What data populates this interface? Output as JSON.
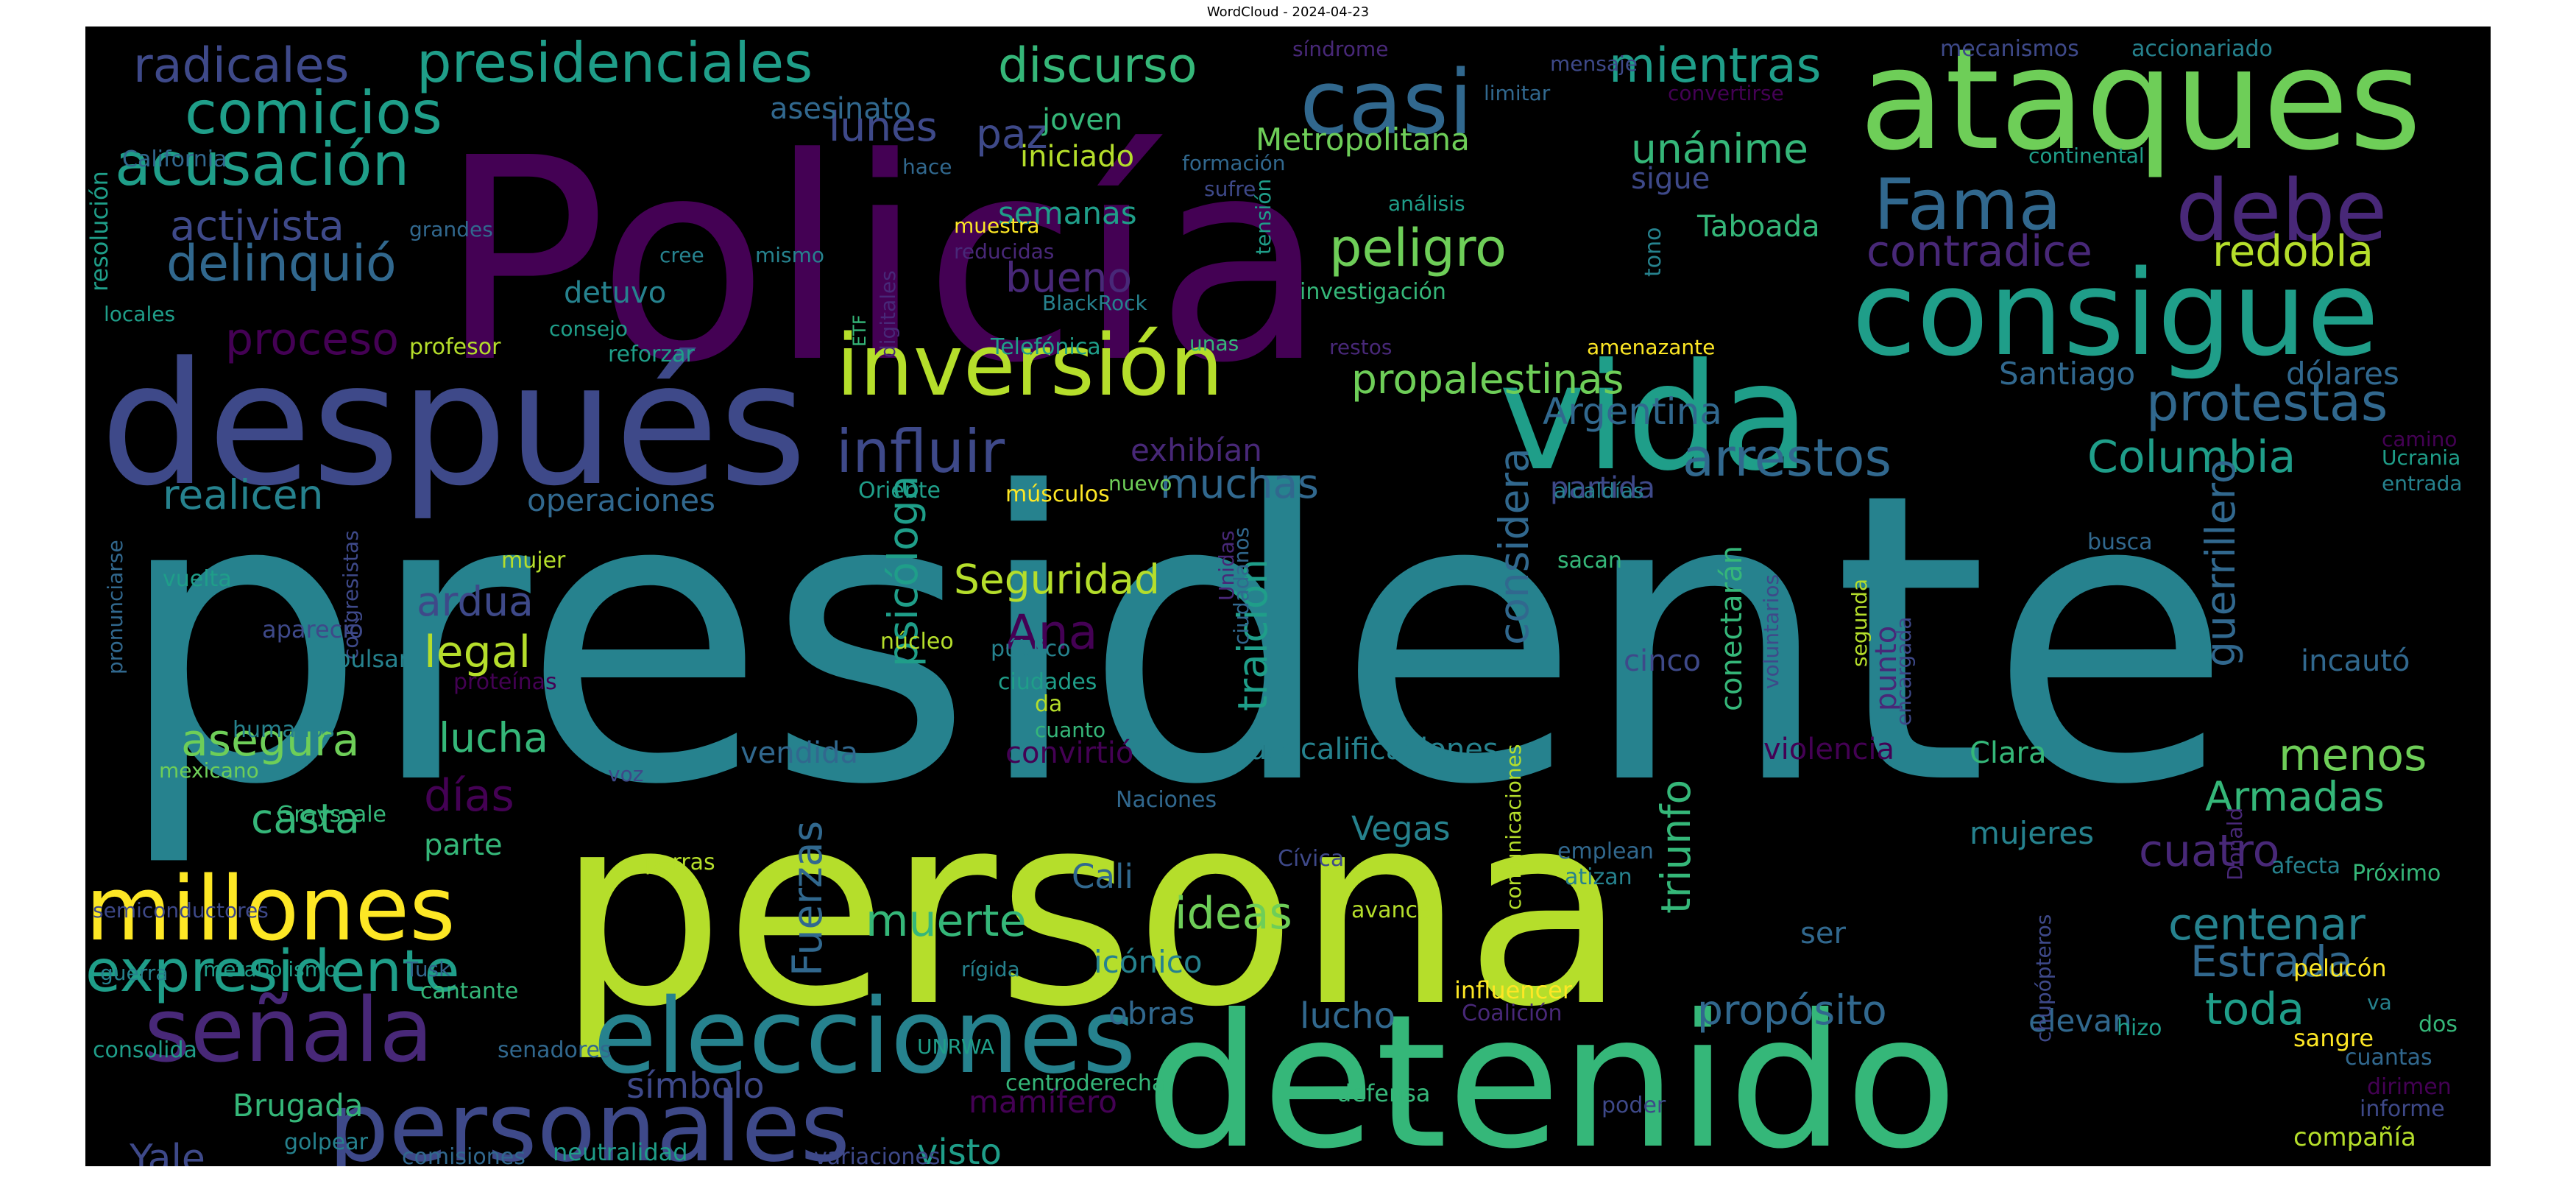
{
  "title": "WordCloud - 2024-04-23",
  "colors": [
    "#440154",
    "#482878",
    "#3e4989",
    "#31688e",
    "#26828e",
    "#1f9e89",
    "#35b779",
    "#6ece58",
    "#b5de2b",
    "#fde725"
  ],
  "words": [
    {
      "t": "presidente",
      "c": 4
    },
    {
      "t": "persona",
      "c": 8
    },
    {
      "t": "Policía",
      "c": 0
    },
    {
      "t": "detenido",
      "c": 6
    },
    {
      "t": "después",
      "c": 2
    },
    {
      "t": "ataques",
      "c": 7
    },
    {
      "t": "consigue",
      "c": 5
    },
    {
      "t": "vida",
      "c": 5
    },
    {
      "t": "inversión",
      "c": 8
    },
    {
      "t": "elecciones",
      "c": 4
    },
    {
      "t": "personales",
      "c": 2
    },
    {
      "t": "señala",
      "c": 1
    },
    {
      "t": "millones",
      "c": 9
    },
    {
      "t": "casi",
      "c": 3
    },
    {
      "t": "Fama",
      "c": 3
    },
    {
      "t": "debe",
      "c": 1
    },
    {
      "t": "presidenciales",
      "c": 5
    },
    {
      "t": "expresidente",
      "c": 5
    },
    {
      "t": "acusación",
      "c": 5
    },
    {
      "t": "comicios",
      "c": 5
    },
    {
      "t": "delinquió",
      "c": 3
    },
    {
      "t": "radicales",
      "c": 2
    },
    {
      "t": "discurso",
      "c": 6
    },
    {
      "t": "activista",
      "c": 2
    },
    {
      "t": "influir",
      "c": 2
    },
    {
      "t": "propalestinas",
      "c": 7
    },
    {
      "t": "protestas",
      "c": 3
    },
    {
      "t": "arrestos",
      "c": 3
    },
    {
      "t": "Columbia",
      "c": 5
    },
    {
      "t": "peligro",
      "c": 7
    },
    {
      "t": "mientras",
      "c": 5
    },
    {
      "t": "unánime",
      "c": 6
    },
    {
      "t": "contradice",
      "c": 1
    },
    {
      "t": "redobla",
      "c": 8
    },
    {
      "t": "proceso",
      "c": 0
    },
    {
      "t": "psicóloga",
      "c": 5
    },
    {
      "t": "traición",
      "c": 5
    },
    {
      "t": "considera",
      "c": 3
    },
    {
      "t": "guerrillero",
      "c": 3
    },
    {
      "t": "Fuerzas",
      "c": 3
    },
    {
      "t": "triunfo",
      "c": 6
    },
    {
      "t": "muerte",
      "c": 6
    },
    {
      "t": "ideas",
      "c": 7
    },
    {
      "t": "cuatro",
      "c": 1
    },
    {
      "t": "centenar",
      "c": 4
    },
    {
      "t": "menos",
      "c": 7
    },
    {
      "t": "Armadas",
      "c": 6
    },
    {
      "t": "lunes",
      "c": 2
    },
    {
      "t": "paz",
      "c": 2
    },
    {
      "t": "bueno",
      "c": 1
    },
    {
      "t": "muchas",
      "c": 3
    },
    {
      "t": "Argentina",
      "c": 3
    },
    {
      "t": "realicen",
      "c": 4
    },
    {
      "t": "ardua",
      "c": 2
    },
    {
      "t": "legal",
      "c": 8
    },
    {
      "t": "asegura",
      "c": 7
    },
    {
      "t": "lucha",
      "c": 6
    },
    {
      "t": "días",
      "c": 0
    },
    {
      "t": "casta",
      "c": 6
    },
    {
      "t": "Seguridad",
      "c": 8
    },
    {
      "t": "Ana",
      "c": 0
    },
    {
      "t": "Estrada",
      "c": 3
    },
    {
      "t": "toda",
      "c": 5
    },
    {
      "t": "propósito",
      "c": 3
    },
    {
      "t": "lunes",
      "c": 2
    },
    {
      "t": "Metropolitana",
      "c": 7
    },
    {
      "t": "Santiago",
      "c": 3
    },
    {
      "t": "dólares",
      "c": 3
    },
    {
      "t": "Taboada",
      "c": 6
    },
    {
      "t": "sigue",
      "c": 2
    },
    {
      "t": "iniciado",
      "c": 8
    },
    {
      "t": "joven",
      "c": 6
    },
    {
      "t": "asesinato",
      "c": 3
    },
    {
      "t": "semanas",
      "c": 5
    },
    {
      "t": "exhibían",
      "c": 1
    },
    {
      "t": "operaciones",
      "c": 3
    },
    {
      "t": "partida",
      "c": 2
    },
    {
      "t": "conectarán",
      "c": 6
    },
    {
      "t": "punto",
      "c": 1
    },
    {
      "t": "incautó",
      "c": 3
    },
    {
      "t": "Clara",
      "c": 6
    },
    {
      "t": "violencia",
      "c": 0
    },
    {
      "t": "descalificaciones",
      "c": 4
    },
    {
      "t": "cinco",
      "c": 2
    },
    {
      "t": "convirtió",
      "c": 0
    },
    {
      "t": "vendida",
      "c": 3
    },
    {
      "t": "Vegas",
      "c": 4
    },
    {
      "t": "Cali",
      "c": 3
    },
    {
      "t": "mujeres",
      "c": 4
    },
    {
      "t": "parte",
      "c": 6
    },
    {
      "t": "obras",
      "c": 3
    },
    {
      "t": "icónico",
      "c": 4
    },
    {
      "t": "lucho",
      "c": 3
    },
    {
      "t": "símbolo",
      "c": 2
    },
    {
      "t": "visto",
      "c": 5
    },
    {
      "t": "mamífero",
      "c": 0
    },
    {
      "t": "Brugada",
      "c": 6
    },
    {
      "t": "Yale",
      "c": 2
    },
    {
      "t": "elevan",
      "c": 3
    },
    {
      "t": "ser",
      "c": 3
    },
    {
      "t": "resolución",
      "c": 5
    },
    {
      "t": "California",
      "c": 3
    },
    {
      "t": "locales",
      "c": 5
    },
    {
      "t": "profesor",
      "c": 8
    },
    {
      "t": "reforzar",
      "c": 5
    },
    {
      "t": "detuvo",
      "c": 4
    },
    {
      "t": "consejo",
      "c": 5
    },
    {
      "t": "cree",
      "c": 4
    },
    {
      "t": "grandes",
      "c": 3
    },
    {
      "t": "mismo",
      "c": 4
    },
    {
      "t": "digitales",
      "c": 1
    },
    {
      "t": "reducidas",
      "c": 1
    },
    {
      "t": "BlackRock",
      "c": 4
    },
    {
      "t": "Telefónica",
      "c": 5
    },
    {
      "t": "ETF",
      "c": 6
    },
    {
      "t": "unas",
      "c": 6
    },
    {
      "t": "restos",
      "c": 1
    },
    {
      "t": "amenazante",
      "c": 9
    },
    {
      "t": "investigación",
      "c": 6
    },
    {
      "t": "tensión",
      "c": 5
    },
    {
      "t": "muestra",
      "c": 9
    },
    {
      "t": "sufre",
      "c": 2
    },
    {
      "t": "formación",
      "c": 3
    },
    {
      "t": "hace",
      "c": 3
    },
    {
      "t": "análisis",
      "c": 5
    },
    {
      "t": "tono",
      "c": 4
    },
    {
      "t": "limitar",
      "c": 3
    },
    {
      "t": "mensaje",
      "c": 2
    },
    {
      "t": "síndrome",
      "c": 1
    },
    {
      "t": "convertirse",
      "c": 0
    },
    {
      "t": "mecanismos",
      "c": 2
    },
    {
      "t": "accionariado",
      "c": 4
    },
    {
      "t": "continental",
      "c": 5
    },
    {
      "t": "camino",
      "c": 0
    },
    {
      "t": "Ucrania",
      "c": 5
    },
    {
      "t": "entrada",
      "c": 4
    },
    {
      "t": "alcaldías",
      "c": 4
    },
    {
      "t": "Oriente",
      "c": 5
    },
    {
      "t": "músculos",
      "c": 9
    },
    {
      "t": "nuevo",
      "c": 7
    },
    {
      "t": "congresistas",
      "c": 2
    },
    {
      "t": "vuelta",
      "c": 5
    },
    {
      "t": "mujer",
      "c": 8
    },
    {
      "t": "apareció",
      "c": 2
    },
    {
      "t": "impulsan",
      "c": 4
    },
    {
      "t": "núcleo",
      "c": 8
    },
    {
      "t": "público",
      "c": 4
    },
    {
      "t": "ciudadanos",
      "c": 3
    },
    {
      "t": "Unidas",
      "c": 1
    },
    {
      "t": "ciudades",
      "c": 5
    },
    {
      "t": "da",
      "c": 8
    },
    {
      "t": "cuanto",
      "c": 6
    },
    {
      "t": "proteínas",
      "c": 0
    },
    {
      "t": "humanos",
      "c": 4
    },
    {
      "t": "voz",
      "c": 2
    },
    {
      "t": "mexicano",
      "c": 7
    },
    {
      "t": "pronunciarse",
      "c": 3
    },
    {
      "t": "Grayscale",
      "c": 6
    },
    {
      "t": "perras",
      "c": 8
    },
    {
      "t": "sacan",
      "c": 6
    },
    {
      "t": "voluntarios",
      "c": 2
    },
    {
      "t": "segunda",
      "c": 8
    },
    {
      "t": "encargada",
      "c": 2
    },
    {
      "t": "busca",
      "c": 3
    },
    {
      "t": "Naciones",
      "c": 3
    },
    {
      "t": "Cívica",
      "c": 2
    },
    {
      "t": "emplean",
      "c": 3
    },
    {
      "t": "atizan",
      "c": 4
    },
    {
      "t": "comunicaciones",
      "c": 8
    },
    {
      "t": "Donald",
      "c": 1
    },
    {
      "t": "afecta",
      "c": 4
    },
    {
      "t": "Próximo",
      "c": 6
    },
    {
      "t": "avance",
      "c": 8
    },
    {
      "t": "semiconductores",
      "c": 2
    },
    {
      "t": "guerra",
      "c": 4
    },
    {
      "t": "metabolismo",
      "c": 5
    },
    {
      "t": "Tusk",
      "c": 3
    },
    {
      "t": "cantante",
      "c": 6
    },
    {
      "t": "rígida",
      "c": 4
    },
    {
      "t": "influencer",
      "c": 9
    },
    {
      "t": "Coalición",
      "c": 1
    },
    {
      "t": "chupópteros",
      "c": 2
    },
    {
      "t": "hizo",
      "c": 5
    },
    {
      "t": "pelucón",
      "c": 9
    },
    {
      "t": "va",
      "c": 4
    },
    {
      "t": "dos",
      "c": 6
    },
    {
      "t": "sangre",
      "c": 9
    },
    {
      "t": "cuantas",
      "c": 3
    },
    {
      "t": "dirimen",
      "c": 0
    },
    {
      "t": "informe",
      "c": 2
    },
    {
      "t": "compañía",
      "c": 8
    },
    {
      "t": "consolida",
      "c": 5
    },
    {
      "t": "senadores",
      "c": 3
    },
    {
      "t": "UNRWA",
      "c": 5
    },
    {
      "t": "centroderecha",
      "c": 6
    },
    {
      "t": "defensa",
      "c": 6
    },
    {
      "t": "poder",
      "c": 2
    },
    {
      "t": "golpear",
      "c": 4
    },
    {
      "t": "comisiones",
      "c": 3
    },
    {
      "t": "neutralidad",
      "c": 5
    },
    {
      "t": "variaciones",
      "c": 2
    }
  ]
}
